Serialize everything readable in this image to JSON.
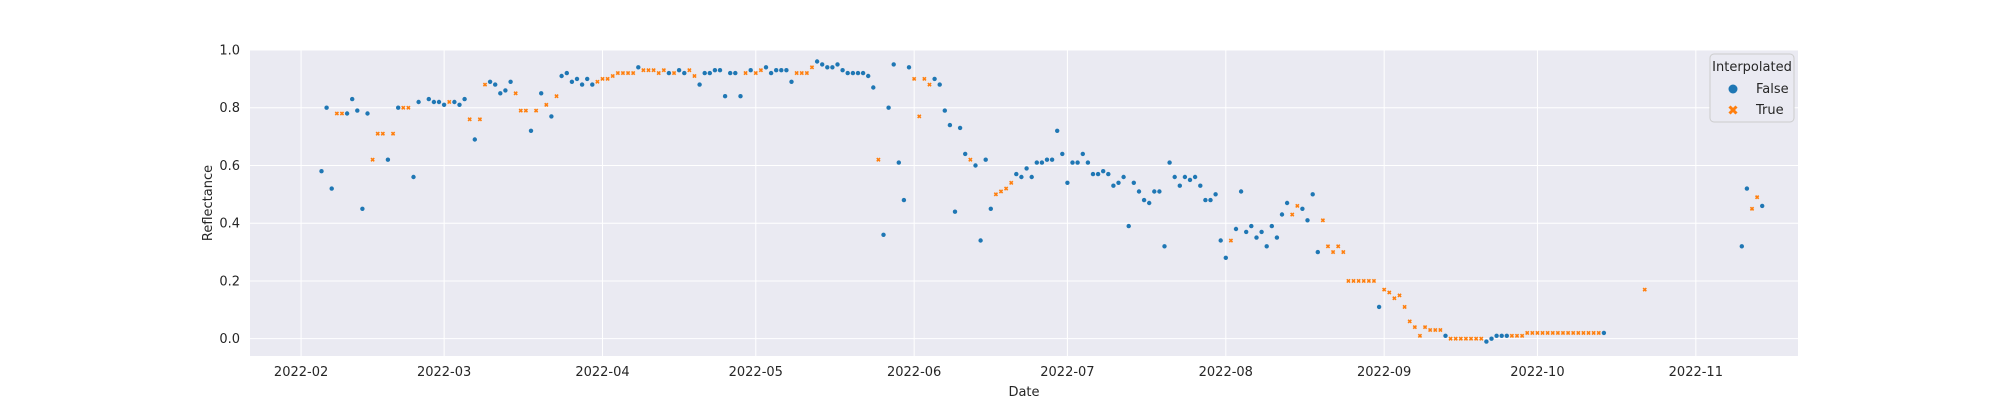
{
  "chart_data": {
    "type": "scatter",
    "title": "",
    "xlabel": "Date",
    "ylabel": "Reflectance",
    "xlim": [
      "2022-01-22",
      "2022-11-21"
    ],
    "ylim": [
      -0.06,
      1.0
    ],
    "x_ticks": [
      "2022-02",
      "2022-03",
      "2022-04",
      "2022-05",
      "2022-06",
      "2022-07",
      "2022-08",
      "2022-09",
      "2022-10",
      "2022-11"
    ],
    "y_ticks": [
      "0.0",
      "0.2",
      "0.4",
      "0.6",
      "0.8",
      "1.0"
    ],
    "grid": true,
    "legend": {
      "title": "Interpolated",
      "placement": "top-right"
    },
    "series": [
      {
        "name": "False",
        "color": "#1f77b4",
        "marker": "circle",
        "points": [
          [
            "2022-02-05",
            0.58
          ],
          [
            "2022-02-06",
            0.8
          ],
          [
            "2022-02-07",
            0.52
          ],
          [
            "2022-02-10",
            0.78
          ],
          [
            "2022-02-11",
            0.83
          ],
          [
            "2022-02-12",
            0.79
          ],
          [
            "2022-02-13",
            0.45
          ],
          [
            "2022-02-14",
            0.78
          ],
          [
            "2022-02-18",
            0.62
          ],
          [
            "2022-02-20",
            0.8
          ],
          [
            "2022-02-23",
            0.56
          ],
          [
            "2022-02-24",
            0.82
          ],
          [
            "2022-02-26",
            0.83
          ],
          [
            "2022-02-27",
            0.82
          ],
          [
            "2022-02-28",
            0.82
          ],
          [
            "2022-03-01",
            0.81
          ],
          [
            "2022-03-03",
            0.82
          ],
          [
            "2022-03-04",
            0.81
          ],
          [
            "2022-03-05",
            0.83
          ],
          [
            "2022-03-07",
            0.69
          ],
          [
            "2022-03-10",
            0.89
          ],
          [
            "2022-03-11",
            0.88
          ],
          [
            "2022-03-12",
            0.85
          ],
          [
            "2022-03-13",
            0.86
          ],
          [
            "2022-03-14",
            0.89
          ],
          [
            "2022-03-18",
            0.72
          ],
          [
            "2022-03-20",
            0.85
          ],
          [
            "2022-03-22",
            0.77
          ],
          [
            "2022-03-24",
            0.91
          ],
          [
            "2022-03-25",
            0.92
          ],
          [
            "2022-03-26",
            0.89
          ],
          [
            "2022-03-27",
            0.9
          ],
          [
            "2022-03-28",
            0.88
          ],
          [
            "2022-03-29",
            0.9
          ],
          [
            "2022-03-30",
            0.88
          ],
          [
            "2022-04-08",
            0.94
          ],
          [
            "2022-04-14",
            0.92
          ],
          [
            "2022-04-16",
            0.93
          ],
          [
            "2022-04-17",
            0.92
          ],
          [
            "2022-04-20",
            0.88
          ],
          [
            "2022-04-21",
            0.92
          ],
          [
            "2022-04-22",
            0.92
          ],
          [
            "2022-04-23",
            0.93
          ],
          [
            "2022-04-24",
            0.93
          ],
          [
            "2022-04-25",
            0.84
          ],
          [
            "2022-04-26",
            0.92
          ],
          [
            "2022-04-27",
            0.92
          ],
          [
            "2022-04-28",
            0.84
          ],
          [
            "2022-04-30",
            0.93
          ],
          [
            "2022-05-03",
            0.94
          ],
          [
            "2022-05-04",
            0.92
          ],
          [
            "2022-05-05",
            0.93
          ],
          [
            "2022-05-06",
            0.93
          ],
          [
            "2022-05-07",
            0.93
          ],
          [
            "2022-05-08",
            0.89
          ],
          [
            "2022-05-13",
            0.96
          ],
          [
            "2022-05-14",
            0.95
          ],
          [
            "2022-05-15",
            0.94
          ],
          [
            "2022-05-16",
            0.94
          ],
          [
            "2022-05-17",
            0.95
          ],
          [
            "2022-05-18",
            0.93
          ],
          [
            "2022-05-19",
            0.92
          ],
          [
            "2022-05-20",
            0.92
          ],
          [
            "2022-05-21",
            0.92
          ],
          [
            "2022-05-22",
            0.92
          ],
          [
            "2022-05-23",
            0.91
          ],
          [
            "2022-05-24",
            0.87
          ],
          [
            "2022-05-26",
            0.36
          ],
          [
            "2022-05-27",
            0.8
          ],
          [
            "2022-05-28",
            0.95
          ],
          [
            "2022-05-29",
            0.61
          ],
          [
            "2022-05-30",
            0.48
          ],
          [
            "2022-05-31",
            0.94
          ],
          [
            "2022-06-05",
            0.9
          ],
          [
            "2022-06-06",
            0.88
          ],
          [
            "2022-06-07",
            0.79
          ],
          [
            "2022-06-08",
            0.74
          ],
          [
            "2022-06-09",
            0.44
          ],
          [
            "2022-06-10",
            0.73
          ],
          [
            "2022-06-11",
            0.64
          ],
          [
            "2022-06-13",
            0.6
          ],
          [
            "2022-06-14",
            0.34
          ],
          [
            "2022-06-15",
            0.62
          ],
          [
            "2022-06-16",
            0.45
          ],
          [
            "2022-06-21",
            0.57
          ],
          [
            "2022-06-22",
            0.56
          ],
          [
            "2022-06-23",
            0.59
          ],
          [
            "2022-06-24",
            0.56
          ],
          [
            "2022-06-25",
            0.61
          ],
          [
            "2022-06-26",
            0.61
          ],
          [
            "2022-06-27",
            0.62
          ],
          [
            "2022-06-28",
            0.62
          ],
          [
            "2022-06-29",
            0.72
          ],
          [
            "2022-06-30",
            0.64
          ],
          [
            "2022-07-01",
            0.54
          ],
          [
            "2022-07-02",
            0.61
          ],
          [
            "2022-07-03",
            0.61
          ],
          [
            "2022-07-04",
            0.64
          ],
          [
            "2022-07-05",
            0.61
          ],
          [
            "2022-07-06",
            0.57
          ],
          [
            "2022-07-07",
            0.57
          ],
          [
            "2022-07-08",
            0.58
          ],
          [
            "2022-07-09",
            0.57
          ],
          [
            "2022-07-10",
            0.53
          ],
          [
            "2022-07-11",
            0.54
          ],
          [
            "2022-07-12",
            0.56
          ],
          [
            "2022-07-13",
            0.39
          ],
          [
            "2022-07-14",
            0.54
          ],
          [
            "2022-07-15",
            0.51
          ],
          [
            "2022-07-16",
            0.48
          ],
          [
            "2022-07-17",
            0.47
          ],
          [
            "2022-07-18",
            0.51
          ],
          [
            "2022-07-19",
            0.51
          ],
          [
            "2022-07-20",
            0.32
          ],
          [
            "2022-07-21",
            0.61
          ],
          [
            "2022-07-22",
            0.56
          ],
          [
            "2022-07-23",
            0.53
          ],
          [
            "2022-07-24",
            0.56
          ],
          [
            "2022-07-25",
            0.55
          ],
          [
            "2022-07-26",
            0.56
          ],
          [
            "2022-07-27",
            0.53
          ],
          [
            "2022-07-28",
            0.48
          ],
          [
            "2022-07-29",
            0.48
          ],
          [
            "2022-07-30",
            0.5
          ],
          [
            "2022-07-31",
            0.34
          ],
          [
            "2022-08-01",
            0.28
          ],
          [
            "2022-08-03",
            0.38
          ],
          [
            "2022-08-04",
            0.51
          ],
          [
            "2022-08-05",
            0.37
          ],
          [
            "2022-08-06",
            0.39
          ],
          [
            "2022-08-07",
            0.35
          ],
          [
            "2022-08-08",
            0.37
          ],
          [
            "2022-08-09",
            0.32
          ],
          [
            "2022-08-10",
            0.39
          ],
          [
            "2022-08-11",
            0.35
          ],
          [
            "2022-08-12",
            0.43
          ],
          [
            "2022-08-13",
            0.47
          ],
          [
            "2022-08-16",
            0.45
          ],
          [
            "2022-08-17",
            0.41
          ],
          [
            "2022-08-18",
            0.5
          ],
          [
            "2022-08-19",
            0.3
          ],
          [
            "2022-08-31",
            0.11
          ],
          [
            "2022-09-13",
            0.01
          ],
          [
            "2022-09-21",
            -0.01
          ],
          [
            "2022-09-22",
            0.0
          ],
          [
            "2022-09-23",
            0.01
          ],
          [
            "2022-09-24",
            0.01
          ],
          [
            "2022-09-25",
            0.01
          ],
          [
            "2022-10-14",
            0.02
          ],
          [
            "2022-11-10",
            0.32
          ],
          [
            "2022-11-11",
            0.52
          ],
          [
            "2022-11-14",
            0.46
          ]
        ]
      },
      {
        "name": "True",
        "color": "#ff7f0e",
        "marker": "x",
        "points": [
          [
            "2022-02-08",
            0.78
          ],
          [
            "2022-02-09",
            0.78
          ],
          [
            "2022-02-15",
            0.62
          ],
          [
            "2022-02-16",
            0.71
          ],
          [
            "2022-02-17",
            0.71
          ],
          [
            "2022-02-19",
            0.71
          ],
          [
            "2022-02-21",
            0.8
          ],
          [
            "2022-02-22",
            0.8
          ],
          [
            "2022-03-02",
            0.82
          ],
          [
            "2022-03-06",
            0.76
          ],
          [
            "2022-03-08",
            0.76
          ],
          [
            "2022-03-09",
            0.88
          ],
          [
            "2022-03-15",
            0.85
          ],
          [
            "2022-03-16",
            0.79
          ],
          [
            "2022-03-17",
            0.79
          ],
          [
            "2022-03-19",
            0.79
          ],
          [
            "2022-03-21",
            0.81
          ],
          [
            "2022-03-23",
            0.84
          ],
          [
            "2022-03-31",
            0.89
          ],
          [
            "2022-04-01",
            0.9
          ],
          [
            "2022-04-02",
            0.9
          ],
          [
            "2022-04-03",
            0.91
          ],
          [
            "2022-04-04",
            0.92
          ],
          [
            "2022-04-05",
            0.92
          ],
          [
            "2022-04-06",
            0.92
          ],
          [
            "2022-04-07",
            0.92
          ],
          [
            "2022-04-09",
            0.93
          ],
          [
            "2022-04-10",
            0.93
          ],
          [
            "2022-04-11",
            0.93
          ],
          [
            "2022-04-12",
            0.92
          ],
          [
            "2022-04-13",
            0.93
          ],
          [
            "2022-04-15",
            0.92
          ],
          [
            "2022-04-18",
            0.93
          ],
          [
            "2022-04-19",
            0.91
          ],
          [
            "2022-04-29",
            0.92
          ],
          [
            "2022-05-01",
            0.92
          ],
          [
            "2022-05-02",
            0.93
          ],
          [
            "2022-05-09",
            0.92
          ],
          [
            "2022-05-10",
            0.92
          ],
          [
            "2022-05-11",
            0.92
          ],
          [
            "2022-05-12",
            0.94
          ],
          [
            "2022-05-25",
            0.62
          ],
          [
            "2022-06-01",
            0.9
          ],
          [
            "2022-06-02",
            0.77
          ],
          [
            "2022-06-03",
            0.9
          ],
          [
            "2022-06-04",
            0.88
          ],
          [
            "2022-06-12",
            0.62
          ],
          [
            "2022-06-17",
            0.5
          ],
          [
            "2022-06-18",
            0.51
          ],
          [
            "2022-06-19",
            0.52
          ],
          [
            "2022-06-20",
            0.54
          ],
          [
            "2022-08-02",
            0.34
          ],
          [
            "2022-08-14",
            0.43
          ],
          [
            "2022-08-15",
            0.46
          ],
          [
            "2022-08-20",
            0.41
          ],
          [
            "2022-08-21",
            0.32
          ],
          [
            "2022-08-22",
            0.3
          ],
          [
            "2022-08-23",
            0.32
          ],
          [
            "2022-08-24",
            0.3
          ],
          [
            "2022-08-25",
            0.2
          ],
          [
            "2022-08-26",
            0.2
          ],
          [
            "2022-08-27",
            0.2
          ],
          [
            "2022-08-28",
            0.2
          ],
          [
            "2022-08-29",
            0.2
          ],
          [
            "2022-08-30",
            0.2
          ],
          [
            "2022-09-01",
            0.17
          ],
          [
            "2022-09-02",
            0.16
          ],
          [
            "2022-09-03",
            0.14
          ],
          [
            "2022-09-04",
            0.15
          ],
          [
            "2022-09-05",
            0.11
          ],
          [
            "2022-09-06",
            0.06
          ],
          [
            "2022-09-07",
            0.04
          ],
          [
            "2022-09-08",
            0.01
          ],
          [
            "2022-09-09",
            0.04
          ],
          [
            "2022-09-10",
            0.03
          ],
          [
            "2022-09-11",
            0.03
          ],
          [
            "2022-09-12",
            0.03
          ],
          [
            "2022-09-14",
            0.0
          ],
          [
            "2022-09-15",
            0.0
          ],
          [
            "2022-09-16",
            0.0
          ],
          [
            "2022-09-17",
            0.0
          ],
          [
            "2022-09-18",
            0.0
          ],
          [
            "2022-09-19",
            0.0
          ],
          [
            "2022-09-20",
            0.0
          ],
          [
            "2022-09-26",
            0.01
          ],
          [
            "2022-09-27",
            0.01
          ],
          [
            "2022-09-28",
            0.01
          ],
          [
            "2022-09-29",
            0.02
          ],
          [
            "2022-09-30",
            0.02
          ],
          [
            "2022-10-01",
            0.02
          ],
          [
            "2022-10-02",
            0.02
          ],
          [
            "2022-10-03",
            0.02
          ],
          [
            "2022-10-04",
            0.02
          ],
          [
            "2022-10-05",
            0.02
          ],
          [
            "2022-10-06",
            0.02
          ],
          [
            "2022-10-07",
            0.02
          ],
          [
            "2022-10-08",
            0.02
          ],
          [
            "2022-10-09",
            0.02
          ],
          [
            "2022-10-10",
            0.02
          ],
          [
            "2022-10-11",
            0.02
          ],
          [
            "2022-10-12",
            0.02
          ],
          [
            "2022-10-13",
            0.02
          ],
          [
            "2022-10-22",
            0.17
          ],
          [
            "2022-11-12",
            0.45
          ],
          [
            "2022-11-13",
            0.49
          ]
        ]
      }
    ]
  }
}
